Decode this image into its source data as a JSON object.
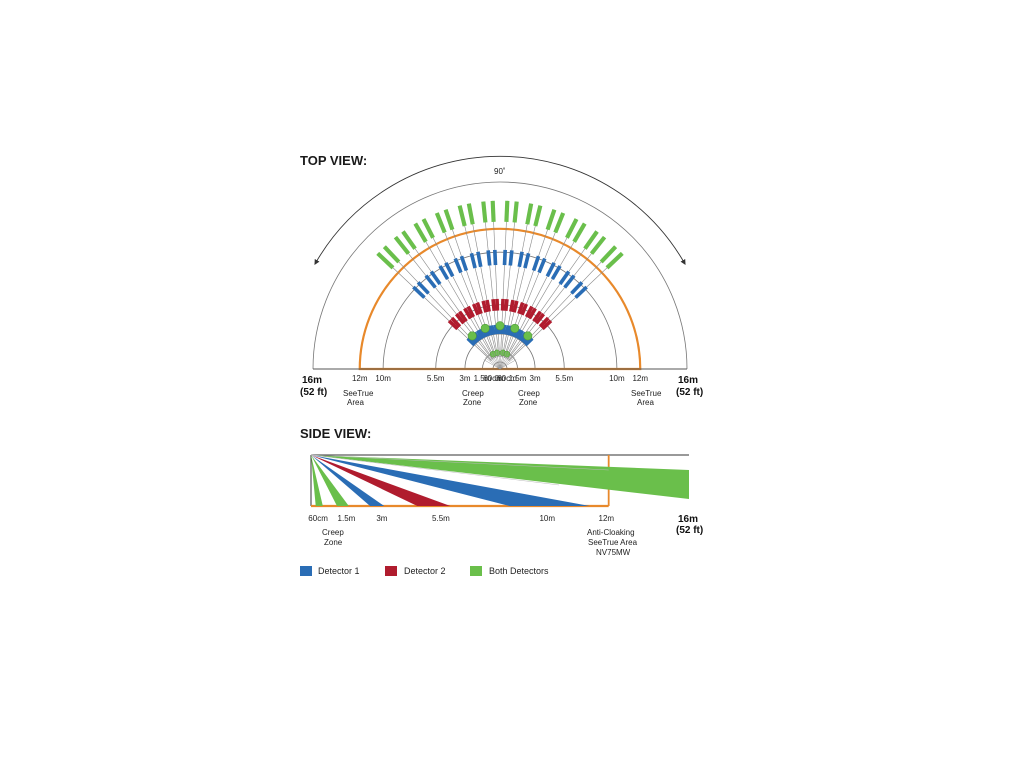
{
  "top_view": {
    "title": "TOP VIEW:",
    "angle_label": "90˚",
    "left_ticks": [
      "12m",
      "10m",
      "5.5m",
      "3m",
      "1.5m",
      "60cm",
      "0m"
    ],
    "right_ticks": [
      "60cm",
      "1.5m",
      "3m",
      "5.5m",
      "10m",
      "12m"
    ],
    "edge_left": [
      "16m",
      "(52 ft)"
    ],
    "edge_right": [
      "16m",
      "(52 ft)"
    ],
    "seetrue_left": [
      "SeeTrue",
      "Area"
    ],
    "seetrue_right": [
      "SeeTrue",
      "Area"
    ],
    "creep_left": [
      "Creep",
      "Zone"
    ],
    "creep_right": [
      "Creep",
      "Zone"
    ]
  },
  "side_view": {
    "title": "SIDE VIEW:",
    "ticks": [
      "60cm",
      "1.5m",
      "3m",
      "5.5m",
      "10m",
      "12m"
    ],
    "edge": [
      "16m",
      "(52 ft)"
    ],
    "creep": [
      "Creep",
      "Zone"
    ],
    "anti_cloaking": [
      "Anti-Cloaking",
      "SeeTrue Area",
      "NV75MW"
    ]
  },
  "legend": [
    {
      "label": "Detector 1",
      "color": "#2a6db5"
    },
    {
      "label": "Detector 2",
      "color": "#b01c2e"
    },
    {
      "label": "Both Detectors",
      "color": "#6abf4b"
    }
  ],
  "colors": {
    "orange": "#e8892b",
    "blue": "#2a6db5",
    "red": "#b01c2e",
    "green": "#6abf4b"
  }
}
